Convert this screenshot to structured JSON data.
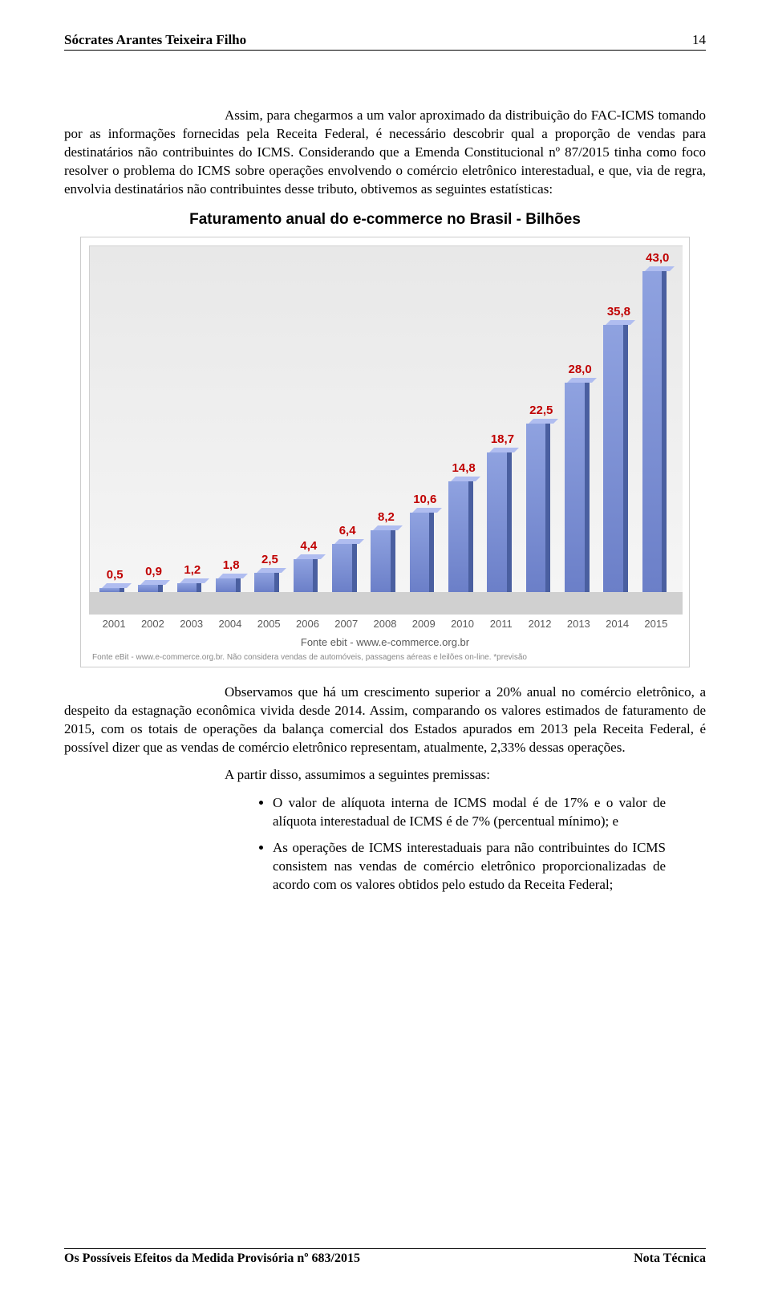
{
  "header": {
    "title": "Sócrates Arantes Teixeira Filho",
    "page": "14"
  },
  "para1": "Assim, para chegarmos a um valor aproximado da distribuição do FAC-ICMS tomando por as informações fornecidas pela Receita Federal, é necessário descobrir qual a proporção de vendas para destinatários não contribuintes do ICMS. Considerando que a Emenda Constitucional nº 87/2015 tinha como foco resolver o problema do ICMS sobre operações envolvendo o comércio eletrônico interestadual, e que, via de regra, envolvia destinatários não contribuintes desse tributo, obtivemos as seguintes estatísticas:",
  "chart": {
    "title": "Faturamento anual do e-commerce no Brasil - Bilhões",
    "years": [
      "2001",
      "2002",
      "2003",
      "2004",
      "2005",
      "2006",
      "2007",
      "2008",
      "2009",
      "2010",
      "2011",
      "2012",
      "2013",
      "2014",
      "2015"
    ],
    "values_label": [
      "0,5",
      "0,9",
      "1,2",
      "1,8",
      "2,5",
      "4,4",
      "6,4",
      "8,2",
      "10,6",
      "14,8",
      "18,7",
      "22,5",
      "28,0",
      "35,8",
      "43,0"
    ],
    "values": [
      0.5,
      0.9,
      1.2,
      1.8,
      2.5,
      4.4,
      6.4,
      8.2,
      10.6,
      14.8,
      18.7,
      22.5,
      28.0,
      35.8,
      43.0
    ],
    "max": 43.0,
    "bar_color_front_top": "#8fa2e0",
    "bar_color_front_bottom": "#6b7fc8",
    "bar_color_side": "#4a5fa0",
    "bar_color_top": "#b0bdf0",
    "label_color": "#c00000",
    "plot_bg_top": "#e8e8e8",
    "plot_bg_bottom": "#f6f6f6",
    "floor_color": "#d0d0d0",
    "source": "Fonte ebit - www.e-commerce.org.br",
    "footnote": "Fonte eBit - www.e-commerce.org.br. Não considera vendas de automóveis, passagens aéreas e leilões on-line. *previsão"
  },
  "para2": "Observamos que há um crescimento superior a 20% anual no comércio eletrônico, a despeito da estagnação econômica vivida desde 2014. Assim, comparando os valores estimados de faturamento de 2015, com os totais de operações da balança comercial dos Estados apurados em 2013 pela Receita Federal, é possível dizer que as vendas de comércio eletrônico representam, atualmente, 2,33% dessas operações.",
  "para3": "A partir disso, assumimos a seguintes premissas:",
  "bullets": [
    "O valor de alíquota interna de ICMS modal é de 17% e o valor de alíquota interestadual de ICMS é de 7% (percentual mínimo); e",
    "As operações de ICMS interestaduais para não contribuintes do ICMS consistem nas vendas de comércio eletrônico proporcionalizadas de acordo com os valores obtidos pelo estudo da Receita Federal;"
  ],
  "footer": {
    "left": "Os Possíveis Efeitos da Medida Provisória nº 683/2015",
    "right": "Nota Técnica"
  }
}
